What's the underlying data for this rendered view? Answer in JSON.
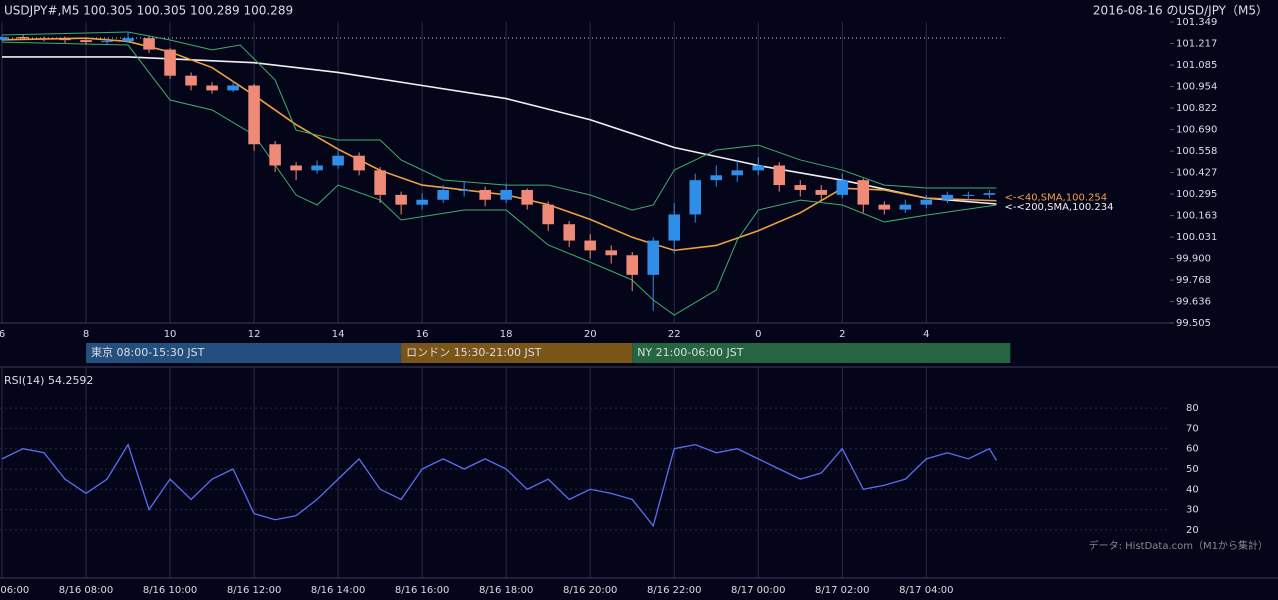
{
  "chart_data": [
    {
      "type": "candlestick",
      "title": "USDJPY#,M5 100.305 100.305 100.289 100.289",
      "subtitle": "2016-08-16 のUSD/JPY（M5）",
      "xlim": [
        6,
        33.8
      ],
      "xticks": [
        6,
        8,
        10,
        12,
        14,
        16,
        18,
        20,
        22,
        {
          "value": 24,
          "label": "0"
        },
        {
          "value": 26,
          "label": "2"
        },
        {
          "value": 28,
          "label": "4"
        }
      ],
      "ylim": [
        99.505,
        101.349
      ],
      "yticks": [
        101.349,
        101.217,
        101.085,
        100.954,
        100.822,
        {
          "value": 100.69,
          "label": "100.690"
        },
        100.558,
        100.427,
        100.295,
        100.163,
        100.031,
        {
          "value": 99.9,
          "label": "99.900"
        },
        99.768,
        99.636,
        99.505
      ],
      "grid": true,
      "up_color": "#2f8fe8",
      "down_color": "#f08a78",
      "candles": {
        "x": [
          6,
          6.5,
          7,
          7.5,
          8,
          8.5,
          9,
          9.5,
          10,
          10.5,
          11,
          11.5,
          12,
          12.5,
          13,
          13.5,
          14,
          14.5,
          15,
          15.5,
          16,
          16.5,
          17,
          17.5,
          18,
          18.5,
          19,
          19.5,
          20,
          20.5,
          21,
          21.5,
          22,
          22.5,
          23,
          23.5,
          24,
          24.5,
          25,
          25.5,
          26,
          26.5,
          27,
          27.5,
          28,
          28.5,
          29,
          29.5
        ],
        "open": [
          101.24,
          101.257,
          101.25,
          101.245,
          101.238,
          101.226,
          101.232,
          101.25,
          101.18,
          101.02,
          100.96,
          100.93,
          100.96,
          100.6,
          100.47,
          100.44,
          100.47,
          100.53,
          100.44,
          100.29,
          100.23,
          100.26,
          100.32,
          100.32,
          100.26,
          100.32,
          100.23,
          100.11,
          100.01,
          99.95,
          99.92,
          99.8,
          100.01,
          100.17,
          100.38,
          100.41,
          100.44,
          100.47,
          100.35,
          100.32,
          100.29,
          100.38,
          100.23,
          100.2,
          100.23,
          100.26,
          100.29,
          100.29
        ],
        "high": [
          101.27,
          101.27,
          101.26,
          101.26,
          101.25,
          101.25,
          101.29,
          101.26,
          101.19,
          101.04,
          100.98,
          100.99,
          100.97,
          100.62,
          100.49,
          100.5,
          100.57,
          100.55,
          100.46,
          100.31,
          100.3,
          100.35,
          100.37,
          100.34,
          100.36,
          100.33,
          100.25,
          100.13,
          100.05,
          99.98,
          99.94,
          100.03,
          100.24,
          100.42,
          100.47,
          100.5,
          100.52,
          100.49,
          100.38,
          100.35,
          100.42,
          100.39,
          100.25,
          100.26,
          100.29,
          100.31,
          100.31,
          100.32
        ],
        "low": [
          101.23,
          101.24,
          101.23,
          101.22,
          101.21,
          101.21,
          101.22,
          101.16,
          101.0,
          100.93,
          100.91,
          100.92,
          100.56,
          100.43,
          100.38,
          100.42,
          100.45,
          100.41,
          100.24,
          100.17,
          100.2,
          100.24,
          100.28,
          100.22,
          100.24,
          100.2,
          100.07,
          99.97,
          99.9,
          99.87,
          99.7,
          99.58,
          99.93,
          100.12,
          100.34,
          100.37,
          100.41,
          100.31,
          100.28,
          100.26,
          100.27,
          100.18,
          100.17,
          100.18,
          100.21,
          100.24,
          100.26,
          100.27
        ],
        "close": [
          101.257,
          101.25,
          101.245,
          101.238,
          101.226,
          101.232,
          101.25,
          101.18,
          101.02,
          100.96,
          100.93,
          100.96,
          100.6,
          100.47,
          100.44,
          100.47,
          100.53,
          100.44,
          100.29,
          100.23,
          100.26,
          100.32,
          100.32,
          100.26,
          100.32,
          100.23,
          100.11,
          100.01,
          99.95,
          99.92,
          99.8,
          100.01,
          100.17,
          100.38,
          100.41,
          100.44,
          100.47,
          100.35,
          100.32,
          100.29,
          100.38,
          100.23,
          100.2,
          100.23,
          100.26,
          100.29,
          100.29,
          100.3
        ]
      },
      "lines": [
        {
          "color": "#f0f0f0",
          "x": [
            6,
            9,
            12,
            14,
            16,
            18,
            20,
            22,
            24,
            26,
            28,
            29.67
          ],
          "values": [
            101.135,
            101.135,
            101.1,
            101.04,
            100.96,
            100.88,
            100.75,
            100.58,
            100.47,
            100.38,
            100.27,
            100.234
          ]
        },
        {
          "color": "#f0a040",
          "x": [
            6,
            8,
            9,
            10,
            11,
            12,
            13,
            14,
            15,
            16,
            17,
            18,
            19,
            20,
            21,
            22,
            23,
            24,
            25,
            26,
            27,
            28,
            29.67
          ],
          "values": [
            101.24,
            101.25,
            101.23,
            101.165,
            101.07,
            100.9,
            100.72,
            100.57,
            100.44,
            100.35,
            100.32,
            100.29,
            100.23,
            100.14,
            100.03,
            99.95,
            99.98,
            100.07,
            100.18,
            100.33,
            100.32,
            100.27,
            100.254
          ]
        },
        {
          "color": "#3fae6a",
          "x": [
            6,
            9,
            10,
            11,
            11.67,
            12.5,
            13,
            14,
            15,
            15.5,
            16.5,
            18,
            19,
            20,
            21,
            21.5,
            22,
            23,
            24,
            25,
            26,
            27,
            28,
            29.67
          ],
          "values": [
            101.269,
            101.288,
            101.239,
            101.178,
            101.208,
            100.994,
            100.687,
            100.626,
            100.626,
            100.504,
            100.381,
            100.35,
            100.35,
            100.289,
            100.197,
            100.228,
            100.442,
            100.565,
            100.595,
            100.504,
            100.442,
            100.35,
            100.332,
            100.332
          ]
        },
        {
          "color": "#3fae6a",
          "x": [
            6,
            9,
            10,
            11,
            12,
            13,
            13.5,
            14,
            15,
            15.5,
            17,
            18,
            19,
            20,
            21,
            21.5,
            22,
            23,
            23.5,
            24,
            25,
            26,
            27,
            28,
            29.67
          ],
          "values": [
            101.226,
            101.208,
            100.871,
            100.81,
            100.657,
            100.289,
            100.228,
            100.35,
            100.258,
            100.136,
            100.197,
            100.197,
            99.983,
            99.878,
            99.768,
            99.646,
            99.554,
            99.707,
            100.013,
            100.197,
            100.258,
            100.228,
            100.124,
            100.166,
            100.228
          ]
        }
      ],
      "ref_line": 101.251,
      "annotations": [
        {
          "text": "<-<40,SMA,100.254",
          "color": "#f0a040"
        },
        {
          "text": "<-<200,SMA,100.234",
          "color": "#f0f0f0"
        }
      ],
      "sessions": [
        {
          "label": "東京 08:00-15:30 JST",
          "start": 8,
          "end": 15.5,
          "color": "#234f7e"
        },
        {
          "label": "ロンドン 15:30-21:00 JST",
          "start": 15.5,
          "end": 21,
          "color": "#7a5518"
        },
        {
          "label": "NY 21:00-06:00 JST",
          "start": 21,
          "end": 30,
          "color": "#256640"
        }
      ]
    },
    {
      "type": "line",
      "title": "RSI(14) 54.2592",
      "source": "データ: HistData.com（M1から集計）",
      "color": "#5a6ef0",
      "xlim": [
        6,
        33.8
      ],
      "xticks": [
        {
          "value": 6,
          "label": "8/16 06:00"
        },
        {
          "value": 8,
          "label": "8/16 08:00"
        },
        {
          "value": 10,
          "label": "8/16 10:00"
        },
        {
          "value": 12,
          "label": "8/16 12:00"
        },
        {
          "value": 14,
          "label": "8/16 14:00"
        },
        {
          "value": 16,
          "label": "8/16 16:00"
        },
        {
          "value": 18,
          "label": "8/16 18:00"
        },
        {
          "value": 20,
          "label": "8/16 20:00"
        },
        {
          "value": 22,
          "label": "8/16 22:00"
        },
        {
          "value": 24,
          "label": "8/17 00:00"
        },
        {
          "value": 26,
          "label": "8/17 02:00"
        },
        {
          "value": 28,
          "label": "8/17 04:00"
        }
      ],
      "ylim": [
        15,
        85
      ],
      "yticks": [
        20,
        30,
        40,
        50,
        60,
        70,
        80
      ],
      "grid": true,
      "x": [
        6,
        6.5,
        7,
        7.5,
        8,
        8.5,
        9,
        9.5,
        10,
        10.5,
        11,
        11.5,
        12,
        12.5,
        13,
        13.5,
        14,
        14.5,
        15,
        15.5,
        16,
        16.5,
        17,
        17.5,
        18,
        18.5,
        19,
        19.5,
        20,
        20.5,
        21,
        21.5,
        22,
        22.5,
        23,
        23.5,
        24,
        24.5,
        25,
        25.5,
        26,
        26.5,
        27,
        27.5,
        28,
        28.5,
        29,
        29.5,
        29.67
      ],
      "values": [
        55,
        60,
        58,
        45,
        38,
        45,
        62,
        30,
        45,
        35,
        45,
        50,
        28,
        25,
        27,
        35,
        45,
        55,
        40,
        35,
        50,
        55,
        50,
        55,
        50,
        40,
        45,
        35,
        40,
        38,
        35,
        22,
        60,
        62,
        58,
        60,
        55,
        50,
        45,
        48,
        60,
        40,
        42,
        45,
        55,
        58,
        55,
        60,
        54.26
      ]
    }
  ]
}
